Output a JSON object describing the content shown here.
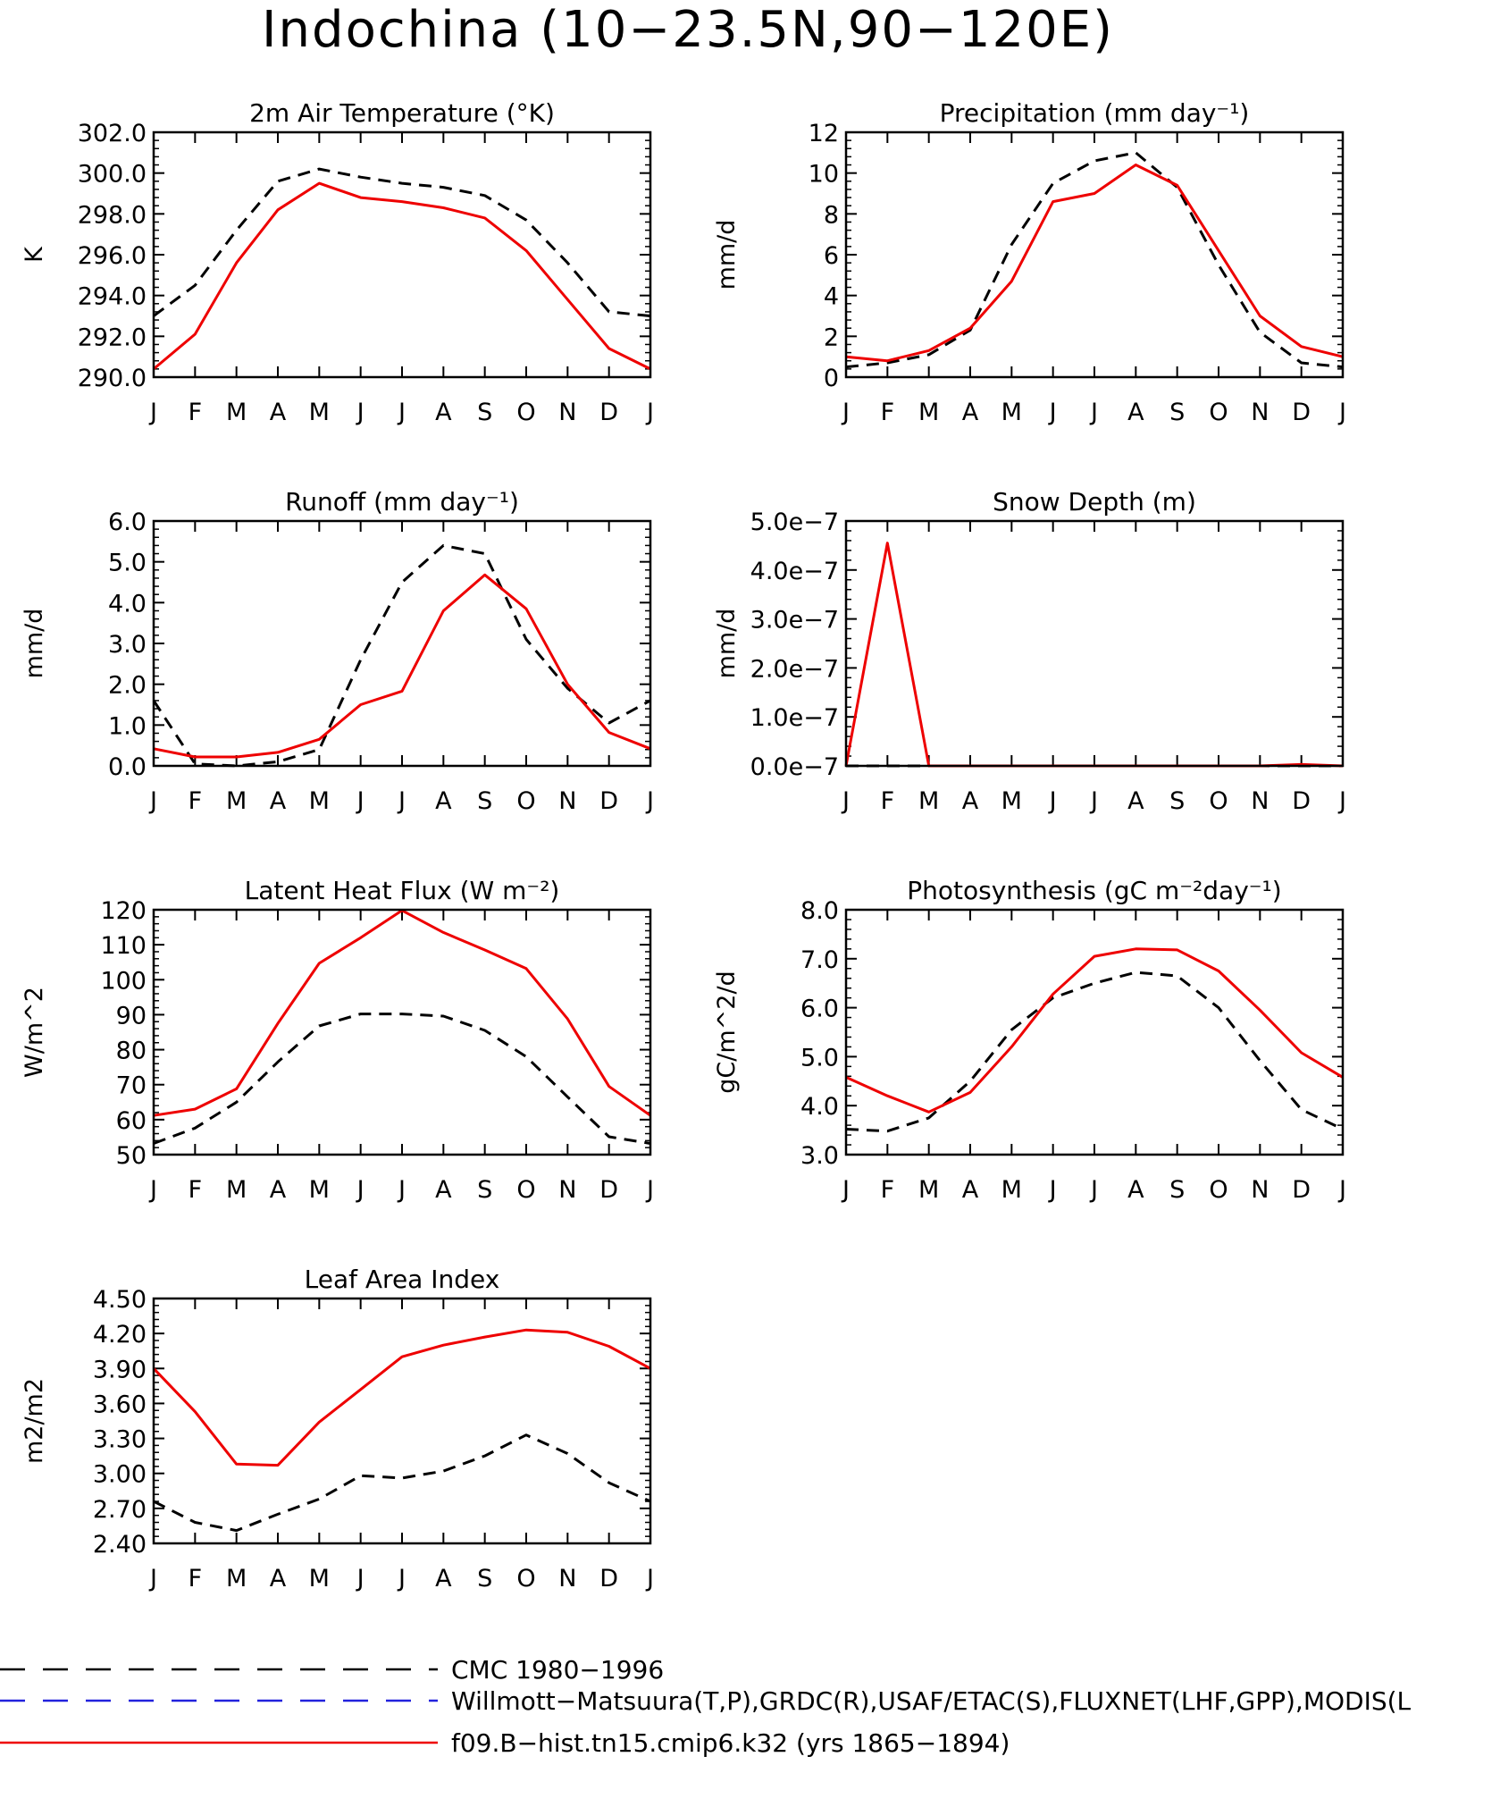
{
  "title": "Indochina (10−23.5N,90−120E)",
  "colors": {
    "model": "#ee0000",
    "cmc": "#000000",
    "obs": "#2222dd"
  },
  "legend": [
    {
      "label": "CMC 1980−1996",
      "color": "#000000",
      "style": "dashed"
    },
    {
      "label": "Willmott−Matsuura(T,P),GRDC(R),USAF/ETAC(S),FLUXNET(LHF,GPP),MODIS(L",
      "color": "#2222dd",
      "style": "dashed"
    },
    {
      "label": "f09.B−hist.tn15.cmip6.k32 (yrs 1865−1894)",
      "color": "#ee0000",
      "style": "solid"
    }
  ],
  "chart_data": [
    {
      "type": "line",
      "title": "2m Air Temperature (°K)",
      "ylabel": "K",
      "categories": [
        "J",
        "F",
        "M",
        "A",
        "M",
        "J",
        "J",
        "A",
        "S",
        "O",
        "N",
        "D",
        "J"
      ],
      "ylim": [
        290,
        302
      ],
      "yticks": [
        "290.0",
        "292.0",
        "294.0",
        "296.0",
        "298.0",
        "300.0",
        "302.0"
      ],
      "series": [
        {
          "name": "CMC 1980−1996",
          "style": "dashed",
          "values": [
            293.0,
            294.5,
            297.2,
            299.6,
            300.2,
            299.8,
            299.5,
            299.3,
            298.9,
            297.7,
            295.6,
            293.2,
            293.0
          ]
        },
        {
          "name": "f09.B−hist.tn15.cmip6.k32 (yrs 1865−1894)",
          "style": "solid",
          "values": [
            290.4,
            292.1,
            295.6,
            298.2,
            299.5,
            298.8,
            298.6,
            298.3,
            297.8,
            296.2,
            293.8,
            291.4,
            290.4
          ]
        }
      ]
    },
    {
      "type": "line",
      "title": "Precipitation (mm day⁻¹)",
      "ylabel": "mm/d",
      "categories": [
        "J",
        "F",
        "M",
        "A",
        "M",
        "J",
        "J",
        "A",
        "S",
        "O",
        "N",
        "D",
        "J"
      ],
      "ylim": [
        0,
        12
      ],
      "yticks": [
        "0",
        "2",
        "4",
        "6",
        "8",
        "10",
        "12"
      ],
      "series": [
        {
          "name": "CMC 1980−1996",
          "style": "dashed",
          "values": [
            0.5,
            0.7,
            1.1,
            2.3,
            6.5,
            9.5,
            10.6,
            11.0,
            9.3,
            5.5,
            2.2,
            0.7,
            0.5
          ]
        },
        {
          "name": "f09.B−hist.tn15.cmip6.k32 (yrs 1865−1894)",
          "style": "solid",
          "values": [
            1.0,
            0.8,
            1.3,
            2.4,
            4.7,
            8.6,
            9.0,
            10.4,
            9.4,
            6.2,
            3.0,
            1.5,
            1.0
          ]
        }
      ]
    },
    {
      "type": "line",
      "title": "Runoff (mm day⁻¹)",
      "ylabel": "mm/d",
      "categories": [
        "J",
        "F",
        "M",
        "A",
        "M",
        "J",
        "J",
        "A",
        "S",
        "O",
        "N",
        "D",
        "J"
      ],
      "ylim": [
        0,
        6
      ],
      "yticks": [
        "0.0",
        "1.0",
        "2.0",
        "3.0",
        "4.0",
        "5.0",
        "6.0"
      ],
      "series": [
        {
          "name": "CMC 1980−1996",
          "style": "dashed",
          "values": [
            1.6,
            0.05,
            0.0,
            0.1,
            0.4,
            2.6,
            4.5,
            5.4,
            5.2,
            3.1,
            1.9,
            1.05,
            1.6
          ]
        },
        {
          "name": "f09.B−hist.tn15.cmip6.k32 (yrs 1865−1894)",
          "style": "solid",
          "values": [
            0.42,
            0.22,
            0.22,
            0.33,
            0.65,
            1.5,
            1.83,
            3.8,
            4.68,
            3.85,
            2.0,
            0.82,
            0.42
          ]
        }
      ]
    },
    {
      "type": "line",
      "title": "Snow Depth (m)",
      "ylabel": "mm/d",
      "categories": [
        "J",
        "F",
        "M",
        "A",
        "M",
        "J",
        "J",
        "A",
        "S",
        "O",
        "N",
        "D",
        "J"
      ],
      "ylim": [
        0,
        5e-07
      ],
      "yticks": [
        "0.0e−7",
        "1.0e−7",
        "2.0e−7",
        "3.0e−7",
        "4.0e−7",
        "5.0e−7"
      ],
      "series": [
        {
          "name": "CMC 1980−1996",
          "style": "dashed",
          "values": [
            0,
            0,
            0,
            0,
            0,
            0,
            0,
            0,
            0,
            0,
            0,
            0,
            0
          ]
        },
        {
          "name": "f09.B−hist.tn15.cmip6.k32 (yrs 1865−1894)",
          "style": "solid",
          "values": [
            0,
            4.55e-07,
            0,
            0,
            0,
            0,
            0,
            0,
            0,
            0,
            0,
            3e-09,
            0
          ]
        }
      ]
    },
    {
      "type": "line",
      "title": "Latent Heat Flux (W m⁻²)",
      "ylabel": "W/m^2",
      "categories": [
        "J",
        "F",
        "M",
        "A",
        "M",
        "J",
        "J",
        "A",
        "S",
        "O",
        "N",
        "D",
        "J"
      ],
      "ylim": [
        50,
        120
      ],
      "yticks": [
        "50",
        "60",
        "70",
        "80",
        "90",
        "100",
        "110",
        "120"
      ],
      "series": [
        {
          "name": "CMC 1980−1996",
          "style": "dashed",
          "values": [
            53.2,
            57.6,
            65.0,
            76.5,
            86.8,
            90.2,
            90.2,
            89.6,
            85.5,
            78.0,
            66.5,
            55.1,
            53.2
          ]
        },
        {
          "name": "f09.B−hist.tn15.cmip6.k32 (yrs 1865−1894)",
          "style": "solid",
          "values": [
            61.2,
            63.0,
            68.8,
            87.5,
            104.7,
            112.0,
            119.8,
            113.5,
            108.5,
            103.2,
            88.8,
            69.5,
            61.2
          ]
        }
      ]
    },
    {
      "type": "line",
      "title": "Photosynthesis (gC m⁻²day⁻¹)",
      "ylabel": "gC/m^2/d",
      "categories": [
        "J",
        "F",
        "M",
        "A",
        "M",
        "J",
        "J",
        "A",
        "S",
        "O",
        "N",
        "D",
        "J"
      ],
      "ylim": [
        3,
        8
      ],
      "yticks": [
        "3.0",
        "4.0",
        "5.0",
        "6.0",
        "7.0",
        "8.0"
      ],
      "series": [
        {
          "name": "CMC 1980−1996",
          "style": "dashed",
          "values": [
            3.52,
            3.48,
            3.75,
            4.5,
            5.55,
            6.2,
            6.5,
            6.72,
            6.65,
            6.0,
            4.92,
            3.92,
            3.52
          ]
        },
        {
          "name": "f09.B−hist.tn15.cmip6.k32 (yrs 1865−1894)",
          "style": "solid",
          "values": [
            4.58,
            4.2,
            3.87,
            4.27,
            5.2,
            6.28,
            7.05,
            7.2,
            7.18,
            6.75,
            5.95,
            5.08,
            4.58
          ]
        }
      ]
    },
    {
      "type": "line",
      "title": "Leaf Area Index",
      "ylabel": "m2/m2",
      "categories": [
        "J",
        "F",
        "M",
        "A",
        "M",
        "J",
        "J",
        "A",
        "S",
        "O",
        "N",
        "D",
        "J"
      ],
      "ylim": [
        2.4,
        4.5
      ],
      "yticks": [
        "2.40",
        "2.70",
        "3.00",
        "3.30",
        "3.60",
        "3.90",
        "4.20",
        "4.50"
      ],
      "series": [
        {
          "name": "CMC 1980−1996",
          "style": "dashed",
          "values": [
            2.76,
            2.58,
            2.51,
            2.65,
            2.78,
            2.98,
            2.96,
            3.02,
            3.15,
            3.33,
            3.17,
            2.92,
            2.76
          ]
        },
        {
          "name": "f09.B−hist.tn15.cmip6.k32 (yrs 1865−1894)",
          "style": "solid",
          "values": [
            3.9,
            3.53,
            3.08,
            3.07,
            3.44,
            3.72,
            4.0,
            4.1,
            4.17,
            4.23,
            4.21,
            4.09,
            3.9
          ]
        }
      ]
    }
  ]
}
